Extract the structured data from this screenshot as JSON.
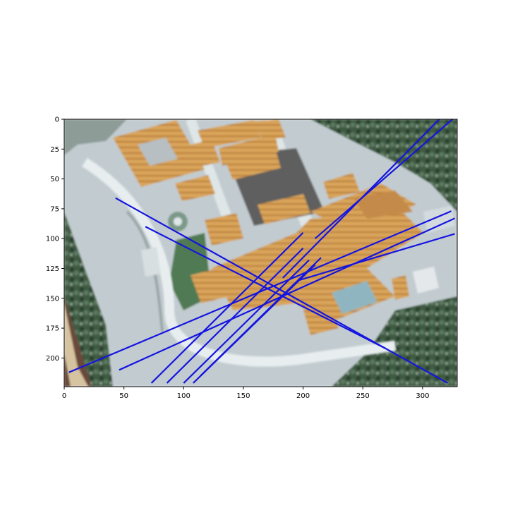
{
  "chart_data": {
    "type": "image-with-line-overlay",
    "title": "",
    "xlabel": "",
    "ylabel": "",
    "xlim": [
      0,
      329
    ],
    "ylim": [
      224,
      0
    ],
    "x_ticks": [
      0,
      50,
      100,
      150,
      200,
      250,
      300
    ],
    "y_ticks": [
      0,
      25,
      50,
      75,
      100,
      125,
      150,
      175,
      200
    ],
    "background_image": "aerial satellite view of a temple complex with orange-roofed buildings, courtyards, paths and trees",
    "line_color": "#1515e0",
    "lines": [
      {
        "x": [
          43,
          321
        ],
        "y": [
          66,
          221
        ]
      },
      {
        "x": [
          68,
          269
        ],
        "y": [
          90,
          192
        ]
      },
      {
        "x": [
          4,
          324
        ],
        "y": [
          212,
          77
        ]
      },
      {
        "x": [
          46,
          327
        ],
        "y": [
          210,
          83
        ]
      },
      {
        "x": [
          196,
          327
        ],
        "y": [
          135,
          96
        ]
      },
      {
        "x": [
          73,
          200
        ],
        "y": [
          221,
          95
        ]
      },
      {
        "x": [
          86,
          200
        ],
        "y": [
          221,
          108
        ]
      },
      {
        "x": [
          100,
          205
        ],
        "y": [
          221,
          118
        ]
      },
      {
        "x": [
          108,
          210
        ],
        "y": [
          221,
          122
        ]
      },
      {
        "x": [
          114,
          215
        ],
        "y": [
          215,
          116
        ]
      },
      {
        "x": [
          183,
          314
        ],
        "y": [
          133,
          0
        ]
      },
      {
        "x": [
          210,
          325
        ],
        "y": [
          100,
          0
        ]
      }
    ]
  }
}
